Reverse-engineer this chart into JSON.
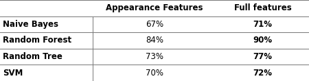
{
  "col_headers": [
    "",
    "Appearance Features",
    "Full features"
  ],
  "rows": [
    {
      "label": "Naive Bayes",
      "appearance": "67%",
      "full": "71%"
    },
    {
      "label": "Random Forest",
      "appearance": "84%",
      "full": "90%"
    },
    {
      "label": "Random Tree",
      "appearance": "73%",
      "full": "77%"
    },
    {
      "label": "SVM",
      "appearance": "70%",
      "full": "72%"
    }
  ],
  "header_fontsize": 8.5,
  "cell_fontsize": 8.5,
  "background_color": "#ffffff",
  "text_color": "#000000",
  "line_color": "#777777",
  "line_lw": 0.7,
  "fig_width": 4.5,
  "fig_height": 1.18,
  "dpi": 100
}
